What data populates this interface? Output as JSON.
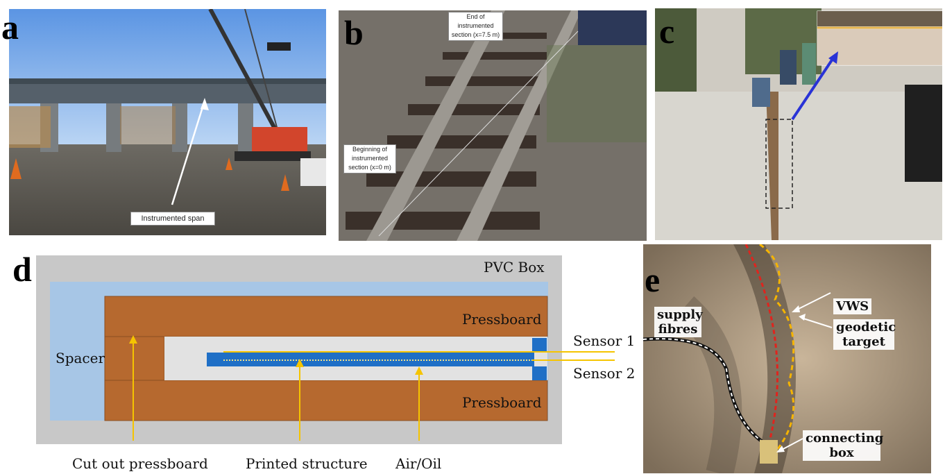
{
  "panel_a": {
    "letter": "a",
    "callout": "Instrumented span"
  },
  "panel_b": {
    "letter": "b",
    "callout_end": "End of instrumented section (x=7.5 m)",
    "callout_begin": "Beginning of instrumented section (x=0 m)"
  },
  "panel_c": {
    "letter": "c"
  },
  "panel_d": {
    "letter": "d",
    "pvc_box": "PVC Box",
    "pressboard_top": "Pressboard",
    "pressboard_bottom": "Pressboard",
    "spacer": "Spacer",
    "sensor1": "Sensor 1",
    "sensor2": "Sensor 2",
    "cut_out": "Cut out pressboard",
    "printed": "Printed structure",
    "air_oil": "Air/Oil",
    "colors": {
      "pvc": "#c8c8c8",
      "spacer": "#a7c6e6",
      "pressboard": "#b6692f",
      "blue": "#1f6fc6",
      "cavity": "#e2e2e2",
      "fibre": "#f5c400"
    }
  },
  "panel_e": {
    "letter": "e",
    "supply": "supply fibres",
    "vws": "VWS",
    "geodetic": "geodetic target",
    "connecting": "connecting box"
  }
}
